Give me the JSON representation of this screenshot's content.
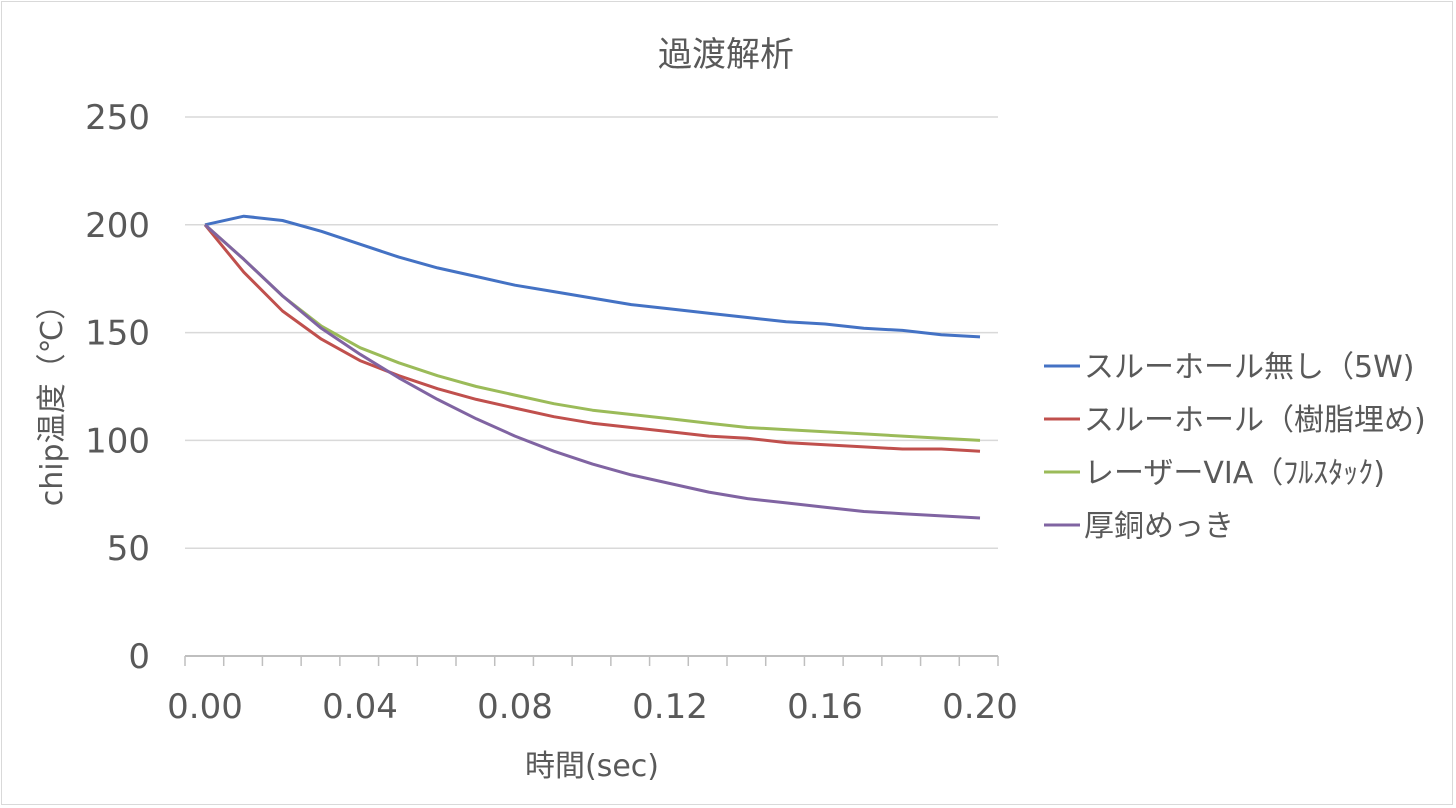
{
  "chart_data": {
    "type": "line",
    "title": "過渡解析",
    "xlabel": "時間(sec)",
    "ylabel": "chip温度（℃）",
    "xlim": [
      0.0,
      0.2
    ],
    "ylim": [
      0,
      250
    ],
    "xticks": [
      "0.00",
      "0.04",
      "0.08",
      "0.12",
      "0.16",
      "0.20"
    ],
    "yticks": [
      "0",
      "50",
      "100",
      "150",
      "200",
      "250"
    ],
    "grid": true,
    "legend_position": "right",
    "x": [
      0.0,
      0.01,
      0.02,
      0.03,
      0.04,
      0.05,
      0.06,
      0.07,
      0.08,
      0.09,
      0.1,
      0.11,
      0.12,
      0.13,
      0.14,
      0.15,
      0.16,
      0.17,
      0.18,
      0.19,
      0.2
    ],
    "series": [
      {
        "name": "スルーホール無し（5W)",
        "color": "#4472c4",
        "values": [
          200,
          204,
          202,
          197,
          191,
          185,
          180,
          176,
          172,
          169,
          166,
          163,
          161,
          159,
          157,
          155,
          154,
          152,
          151,
          149,
          148
        ]
      },
      {
        "name": "スルーホール（樹脂埋め)",
        "color": "#c0504d",
        "values": [
          200,
          178,
          160,
          147,
          137,
          130,
          124,
          119,
          115,
          111,
          108,
          106,
          104,
          102,
          101,
          99,
          98,
          97,
          96,
          96,
          95
        ]
      },
      {
        "name": "レーザーVIA（ﾌﾙｽﾀｯｸ)",
        "color": "#9bbb59",
        "values": [
          200,
          184,
          167,
          153,
          143,
          136,
          130,
          125,
          121,
          117,
          114,
          112,
          110,
          108,
          106,
          105,
          104,
          103,
          102,
          101,
          100
        ]
      },
      {
        "name": "厚銅めっき",
        "color": "#8064a2",
        "values": [
          200,
          184,
          167,
          152,
          140,
          129,
          119,
          110,
          102,
          95,
          89,
          84,
          80,
          76,
          73,
          71,
          69,
          67,
          66,
          65,
          64
        ]
      }
    ]
  }
}
